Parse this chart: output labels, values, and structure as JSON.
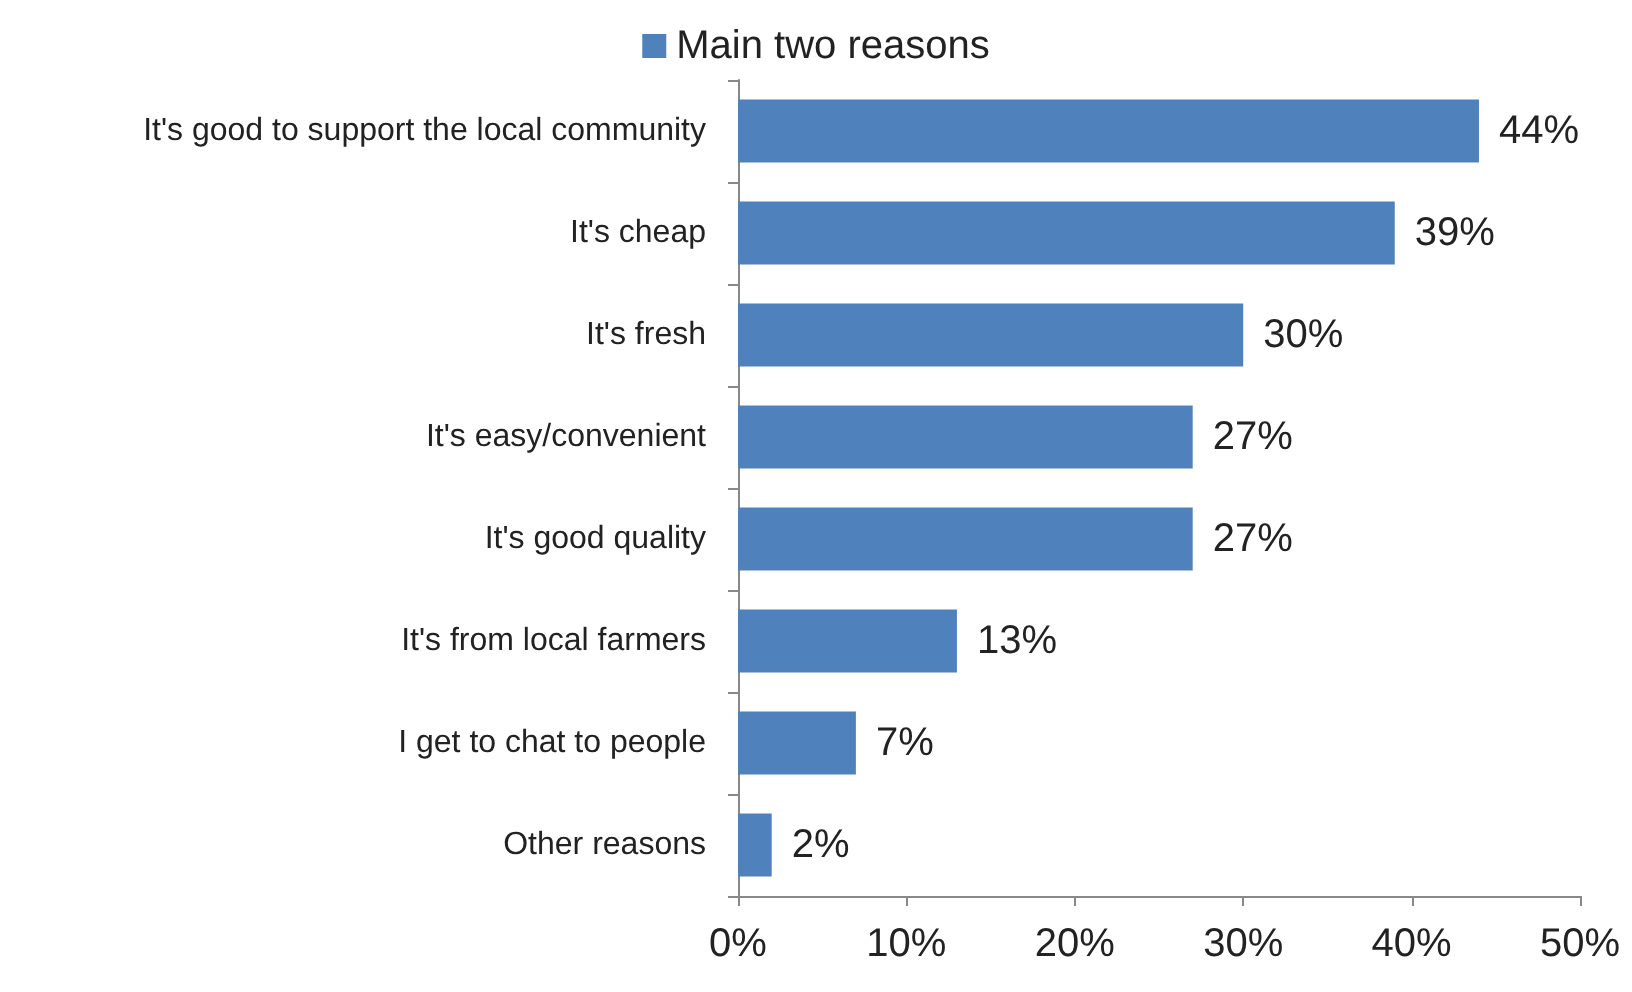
{
  "chart_data": {
    "type": "bar",
    "orientation": "horizontal",
    "categories": [
      "It's good to support the local community",
      "It's cheap",
      "It's fresh",
      "It's easy/convenient",
      "It's good quality",
      "It's from local farmers",
      "I get to chat to people",
      "Other reasons"
    ],
    "series": [
      {
        "name": "Main two reasons",
        "color": "#4f81bd",
        "values": [
          44,
          39,
          30,
          27,
          27,
          13,
          7,
          2
        ],
        "value_labels": [
          "44%",
          "39%",
          "30%",
          "27%",
          "27%",
          "13%",
          "7%",
          "2%"
        ]
      }
    ],
    "xlim": [
      0,
      50
    ],
    "xticks": [
      {
        "value": 0,
        "label": "0%"
      },
      {
        "value": 10,
        "label": "10%"
      },
      {
        "value": 20,
        "label": "20%"
      },
      {
        "value": 30,
        "label": "30%"
      },
      {
        "value": 40,
        "label": "40%"
      },
      {
        "value": 50,
        "label": "50%"
      }
    ],
    "legend": "top"
  }
}
